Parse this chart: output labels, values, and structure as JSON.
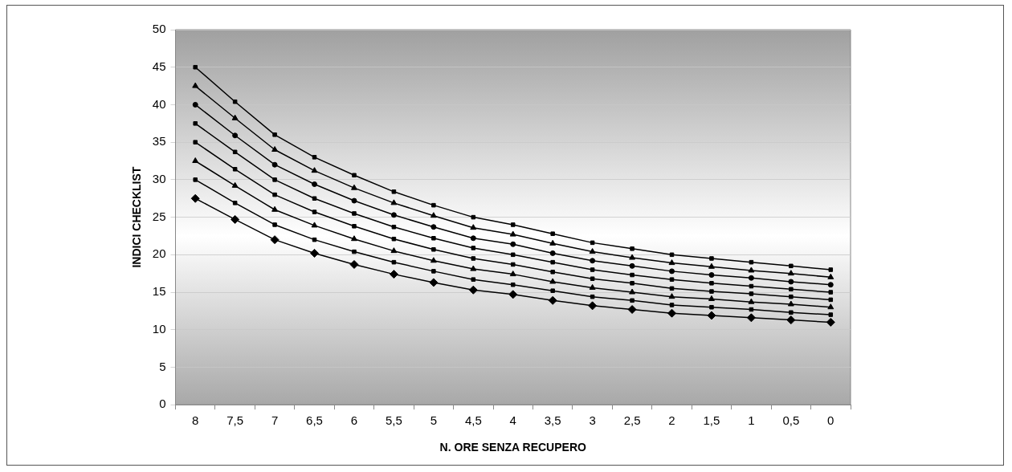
{
  "chart_data": {
    "type": "line",
    "xlabel": "N. ORE SENZA RECUPERO",
    "ylabel": "INDICI CHECKLIST",
    "categories": [
      "8",
      "7,5",
      "7",
      "6,5",
      "6",
      "5,5",
      "5",
      "4,5",
      "4",
      "3,5",
      "3",
      "2,5",
      "2",
      "1,5",
      "1",
      "0,5",
      "0"
    ],
    "ylim": [
      0,
      50
    ],
    "yticks": [
      0,
      5,
      10,
      15,
      20,
      25,
      30,
      35,
      40,
      45,
      50
    ],
    "grid": "y",
    "legend": false,
    "line_style": "solid",
    "series": [
      {
        "color": "#000000",
        "marker": "diamond",
        "values": [
          27.5,
          24.7,
          22,
          20.2,
          18.7,
          17.4,
          16.3,
          15.3,
          14.7,
          13.9,
          13.2,
          12.7,
          12.2,
          11.9,
          11.6,
          11.3,
          11
        ]
      },
      {
        "color": "#000000",
        "marker": "square",
        "values": [
          30,
          26.9,
          24,
          22,
          20.4,
          19,
          17.8,
          16.7,
          16,
          15.2,
          14.4,
          13.9,
          13.3,
          13,
          12.7,
          12.3,
          12
        ]
      },
      {
        "color": "#000000",
        "marker": "triangle",
        "values": [
          32.5,
          29.2,
          26,
          23.9,
          22.1,
          20.5,
          19.2,
          18.1,
          17.4,
          16.4,
          15.6,
          15,
          14.4,
          14.1,
          13.7,
          13.4,
          13
        ]
      },
      {
        "color": "#000000",
        "marker": "square",
        "values": [
          35,
          31.4,
          28,
          25.7,
          23.8,
          22.1,
          20.7,
          19.5,
          18.7,
          17.7,
          16.8,
          16.2,
          15.5,
          15.1,
          14.8,
          14.4,
          14
        ]
      },
      {
        "color": "#000000",
        "marker": "square",
        "values": [
          37.5,
          33.7,
          30,
          27.5,
          25.5,
          23.7,
          22.2,
          20.9,
          20,
          19,
          18,
          17.3,
          16.7,
          16.2,
          15.8,
          15.4,
          15
        ]
      },
      {
        "color": "#000000",
        "marker": "circle",
        "values": [
          40,
          35.9,
          32,
          29.4,
          27.2,
          25.3,
          23.7,
          22.2,
          21.4,
          20.2,
          19.2,
          18.5,
          17.8,
          17.3,
          16.9,
          16.4,
          16
        ]
      },
      {
        "color": "#000000",
        "marker": "triangle",
        "values": [
          42.5,
          38.2,
          34,
          31.2,
          28.9,
          26.9,
          25.2,
          23.6,
          22.7,
          21.5,
          20.4,
          19.6,
          18.9,
          18.4,
          17.9,
          17.5,
          17
        ]
      },
      {
        "color": "#000000",
        "marker": "square",
        "values": [
          45,
          40.4,
          36,
          33,
          30.6,
          28.4,
          26.6,
          25,
          24,
          22.8,
          21.6,
          20.8,
          20,
          19.5,
          19,
          18.5,
          18
        ]
      }
    ]
  }
}
